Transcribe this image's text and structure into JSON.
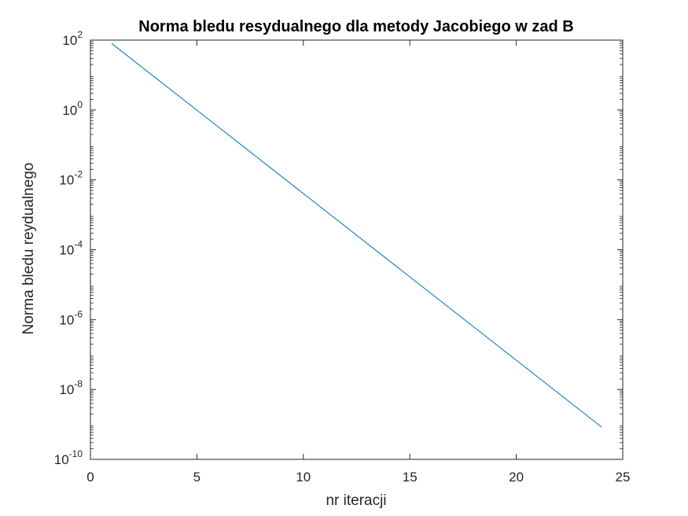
{
  "chart_data": {
    "type": "line",
    "title": "Norma bledu resydualnego dla metody Jacobiego w zad B",
    "xlabel": "nr iteracji",
    "ylabel": "Norma bledu reydualnego",
    "yscale": "log",
    "xlim": [
      0,
      25
    ],
    "ylim": [
      1e-10,
      100
    ],
    "x_ticks": [
      0,
      5,
      10,
      15,
      20,
      25
    ],
    "y_ticks": [
      {
        "base": "10",
        "exp": "-10",
        "value": 1e-10
      },
      {
        "base": "10",
        "exp": "-8",
        "value": 1e-08
      },
      {
        "base": "10",
        "exp": "-6",
        "value": 1e-06
      },
      {
        "base": "10",
        "exp": "-4",
        "value": 0.0001
      },
      {
        "base": "10",
        "exp": "-2",
        "value": 0.01
      },
      {
        "base": "10",
        "exp": "0",
        "value": 1
      },
      {
        "base": "10",
        "exp": "2",
        "value": 100
      }
    ],
    "grid": false,
    "series": [
      {
        "color": "#0072BD",
        "x": [
          1,
          24
        ],
        "y": [
          80,
          8.5e-10
        ]
      }
    ]
  }
}
